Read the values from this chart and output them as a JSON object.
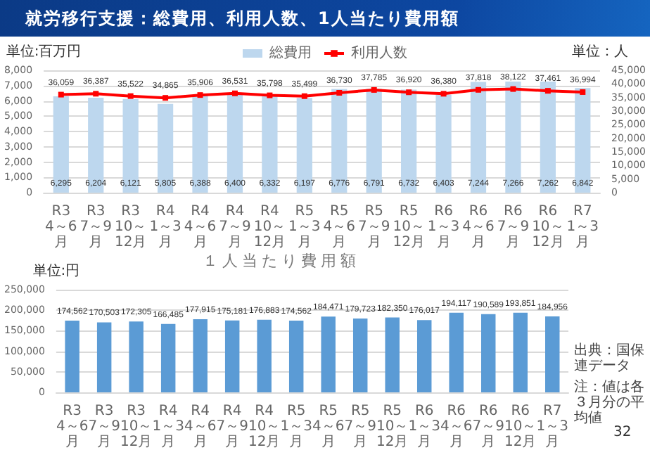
{
  "chart_data": [
    {
      "type": "bar",
      "title": "就労移行支援：総費用、利用人数、1人当たり費用額",
      "ylabel": "単位:百万円",
      "y2label": "単位：人",
      "categories": [
        "R3\n4～6月",
        "R3\n7～9月",
        "R3\n10～12月",
        "R4\n1～3月",
        "R4\n4～6月",
        "R4\n7～9月",
        "R4\n10～12月",
        "R5\n1～3月",
        "R5\n4～6月",
        "R5\n7～9月",
        "R5\n10～12月",
        "R6\n1～3月",
        "R6\n4～6月",
        "R6\n7～9月",
        "R6\n10～12月",
        "R7\n1～3月"
      ],
      "series": [
        {
          "name": "総費用",
          "type": "bar",
          "color": "#bdd7ee",
          "values": [
            6295,
            6204,
            6121,
            5805,
            6388,
            6400,
            6332,
            6197,
            6776,
            6791,
            6732,
            6403,
            7244,
            7266,
            7262,
            6842
          ],
          "value_labels": [
            "6,295",
            "6,204",
            "6,121",
            "5,805",
            "6,388",
            "6,400",
            "6,332",
            "6,197",
            "6,776",
            "6,791",
            "6,732",
            "6,403",
            "7,244",
            "7,266",
            "7,262",
            "6,842"
          ]
        },
        {
          "name": "利用人数",
          "type": "line",
          "axis": "y2",
          "color": "#ff0000",
          "values": [
            36059,
            36387,
            35522,
            34865,
            35906,
            36531,
            35798,
            35499,
            36730,
            37785,
            36920,
            36380,
            37818,
            38122,
            37461,
            36994
          ],
          "value_labels": [
            "36,059",
            "36,387",
            "35,522",
            "34,865",
            "35,906",
            "36,531",
            "35,798",
            "35,499",
            "36,730",
            "37,785",
            "36,920",
            "36,380",
            "37,818",
            "38,122",
            "37,461",
            "36,994"
          ]
        }
      ],
      "ylim": [
        0,
        8000
      ],
      "yticks": [
        0,
        {
          "value": 1000,
          "label": "1,000"
        },
        {
          "value": 2000,
          "label": "2,000"
        },
        {
          "value": 3000,
          "label": "3,000"
        },
        {
          "value": 4000,
          "label": "4,000"
        },
        {
          "value": 5000,
          "label": "5,000"
        },
        {
          "value": 6000,
          "label": "6,000"
        },
        {
          "value": 7000,
          "label": "7,000"
        },
        {
          "value": 8000,
          "label": "8,000"
        }
      ],
      "y2lim": [
        0,
        45000
      ],
      "y2ticks": [
        0,
        {
          "value": 5000,
          "label": "5,000"
        },
        {
          "value": 10000,
          "label": "10,000"
        },
        {
          "value": 15000,
          "label": "15,000"
        },
        {
          "value": 20000,
          "label": "20,000"
        },
        {
          "value": 25000,
          "label": "25,000"
        },
        {
          "value": 30000,
          "label": "30,000"
        },
        {
          "value": 35000,
          "label": "35,000"
        },
        {
          "value": 40000,
          "label": "40,000"
        },
        {
          "value": 45000,
          "label": "45,000"
        }
      ],
      "grid": "y",
      "legend": "top",
      "marker": "square"
    },
    {
      "type": "bar",
      "title": "１人当たり費用額",
      "ylabel": "単位:円",
      "categories": [
        "R3\n4～6月",
        "R3\n7～9月",
        "R3\n10～12月",
        "R4\n1～3月",
        "R4\n4～6月",
        "R4\n7～9月",
        "R4\n10～12月",
        "R5\n1～3月",
        "R5\n4～6月",
        "R5\n7～9月",
        "R5\n10～12月",
        "R6\n1～3月",
        "R6\n4～6月",
        "R6\n7～9月",
        "R6\n10～12月",
        "R7\n1～3月"
      ],
      "values": [
        174562,
        170503,
        172305,
        166485,
        177915,
        175181,
        176883,
        174562,
        184471,
        179723,
        182350,
        176017,
        194117,
        190589,
        193851,
        184956
      ],
      "value_labels": [
        "174,562",
        "170,503",
        "172,305",
        "166,485",
        "177,915",
        "175,181",
        "176,883",
        "174,562",
        "184,471",
        "179,723",
        "182,350",
        "176,017",
        "194,117",
        "190,589",
        "193,851",
        "184,956"
      ],
      "color": "#5b9bd5",
      "ylim": [
        0,
        250000
      ],
      "yticks": [
        0,
        {
          "value": 50000,
          "label": "50,000"
        },
        {
          "value": 100000,
          "label": "100,000"
        },
        {
          "value": 150000,
          "label": "150,000"
        },
        {
          "value": 200000,
          "label": "200,000"
        },
        {
          "value": 250000,
          "label": "250,000"
        }
      ],
      "grid": "y",
      "annotations": [
        "出典：国保連データ",
        "注：値は各３月分の平均値",
        "32"
      ]
    }
  ]
}
